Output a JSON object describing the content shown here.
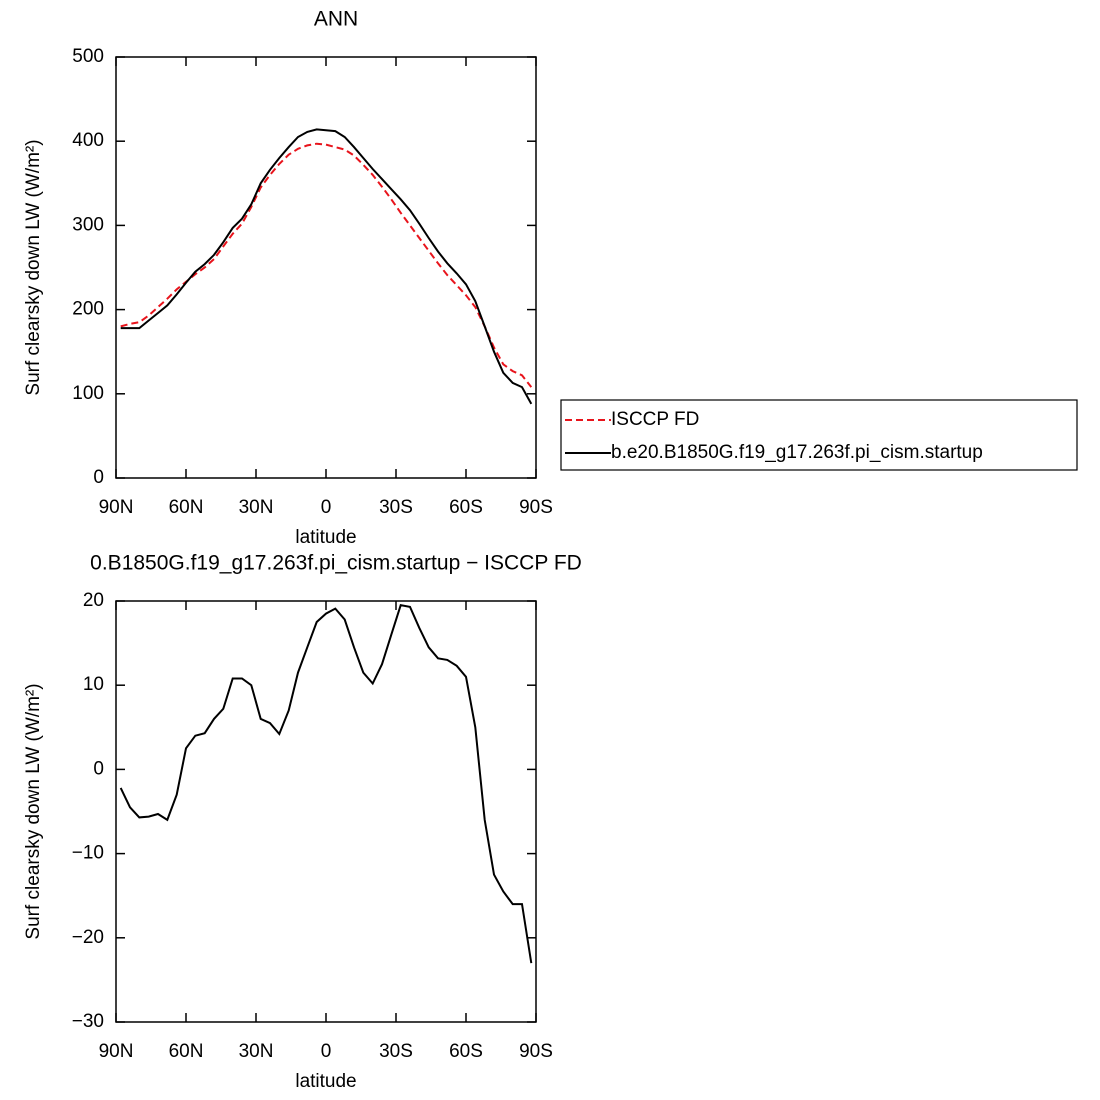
{
  "chart_data": [
    {
      "type": "line",
      "title": "ANN",
      "x_label": "latitude",
      "y_label": "Surf clearsky down LW (W/m²)",
      "x": [
        88,
        84,
        80,
        76,
        72,
        68,
        64,
        60,
        56,
        52,
        48,
        44,
        40,
        36,
        32,
        28,
        24,
        20,
        16,
        12,
        8,
        4,
        0,
        -4,
        -8,
        -12,
        -16,
        -20,
        -24,
        -28,
        -32,
        -36,
        -40,
        -44,
        -48,
        -52,
        -56,
        -60,
        -64,
        -68,
        -72,
        -76,
        -80,
        -84,
        -88
      ],
      "xlim": [
        90,
        -90
      ],
      "xticks": [
        {
          "value": 90,
          "label": "90N"
        },
        {
          "value": 60,
          "label": "60N"
        },
        {
          "value": 30,
          "label": "30N"
        },
        0,
        {
          "value": -30,
          "label": "30S"
        },
        {
          "value": -60,
          "label": "60S"
        },
        {
          "value": -90,
          "label": "90S"
        }
      ],
      "ylim": [
        0,
        500
      ],
      "yticks": [
        0,
        100,
        200,
        300,
        400,
        500
      ],
      "legend": "right",
      "series": [
        {
          "name": "ISCCP FD",
          "color": "#e8141c",
          "line_style": "dashed",
          "values": [
            180,
            183,
            185,
            193,
            203,
            213,
            224,
            233,
            242,
            250,
            260,
            275,
            290,
            302,
            322,
            345,
            360,
            373,
            384,
            391,
            395,
            397,
            396,
            393,
            390,
            383,
            372,
            360,
            346,
            331,
            315,
            300,
            285,
            270,
            255,
            241,
            229,
            217,
            203,
            180,
            155,
            135,
            127,
            122,
            108
          ]
        },
        {
          "name": "b.e20.B1850G.f19_g17.263f.pi_cism.startup",
          "color": "#000000",
          "line_style": "solid",
          "values": [
            178,
            178,
            178,
            187,
            196,
            205,
            218,
            232,
            245,
            254,
            265,
            280,
            297,
            308,
            325,
            350,
            366,
            380,
            393,
            405,
            411,
            414,
            413,
            412,
            405,
            393,
            380,
            367,
            355,
            343,
            331,
            318,
            302,
            285,
            269,
            255,
            243,
            230,
            210,
            180,
            150,
            125,
            113,
            108,
            88
          ]
        }
      ]
    },
    {
      "type": "line",
      "title": "0.B1850G.f19_g17.263f.pi_cism.startup − ISCCP FD",
      "x_label": "latitude",
      "y_label": "Surf clearsky down LW (W/m²)",
      "x": [
        88,
        84,
        80,
        76,
        72,
        68,
        64,
        60,
        56,
        52,
        48,
        44,
        40,
        36,
        32,
        28,
        24,
        20,
        16,
        12,
        8,
        4,
        0,
        -4,
        -8,
        -12,
        -16,
        -20,
        -24,
        -28,
        -32,
        -36,
        -40,
        -44,
        -48,
        -52,
        -56,
        -60,
        -64,
        -68,
        -72,
        -76,
        -80,
        -84,
        -88
      ],
      "xlim": [
        90,
        -90
      ],
      "xticks": [
        {
          "value": 90,
          "label": "90N"
        },
        {
          "value": 60,
          "label": "60N"
        },
        {
          "value": 30,
          "label": "30N"
        },
        0,
        {
          "value": -30,
          "label": "30S"
        },
        {
          "value": -60,
          "label": "60S"
        },
        {
          "value": -90,
          "label": "90S"
        }
      ],
      "ylim": [
        -30,
        20
      ],
      "yticks": [
        {
          "value": -30,
          "label": "−30"
        },
        {
          "value": -20,
          "label": "−20"
        },
        {
          "value": -10,
          "label": "−10"
        },
        0,
        10,
        20
      ],
      "series": [
        {
          "color": "#000000",
          "line_style": "solid",
          "values": [
            -2.2,
            -4.5,
            -5.7,
            -5.6,
            -5.3,
            -6,
            -3,
            2.5,
            4,
            4.3,
            6,
            7.2,
            10.8,
            10.8,
            10,
            6,
            5.5,
            4.2,
            7,
            11.5,
            14.5,
            17.5,
            18.5,
            19.1,
            17.8,
            14.5,
            11.5,
            10.2,
            12.5,
            16,
            19.5,
            19.3,
            16.8,
            14.5,
            13.2,
            13,
            12.3,
            11,
            5,
            -6,
            -12.5,
            -14.5,
            -16,
            -16,
            -23
          ]
        }
      ]
    }
  ]
}
